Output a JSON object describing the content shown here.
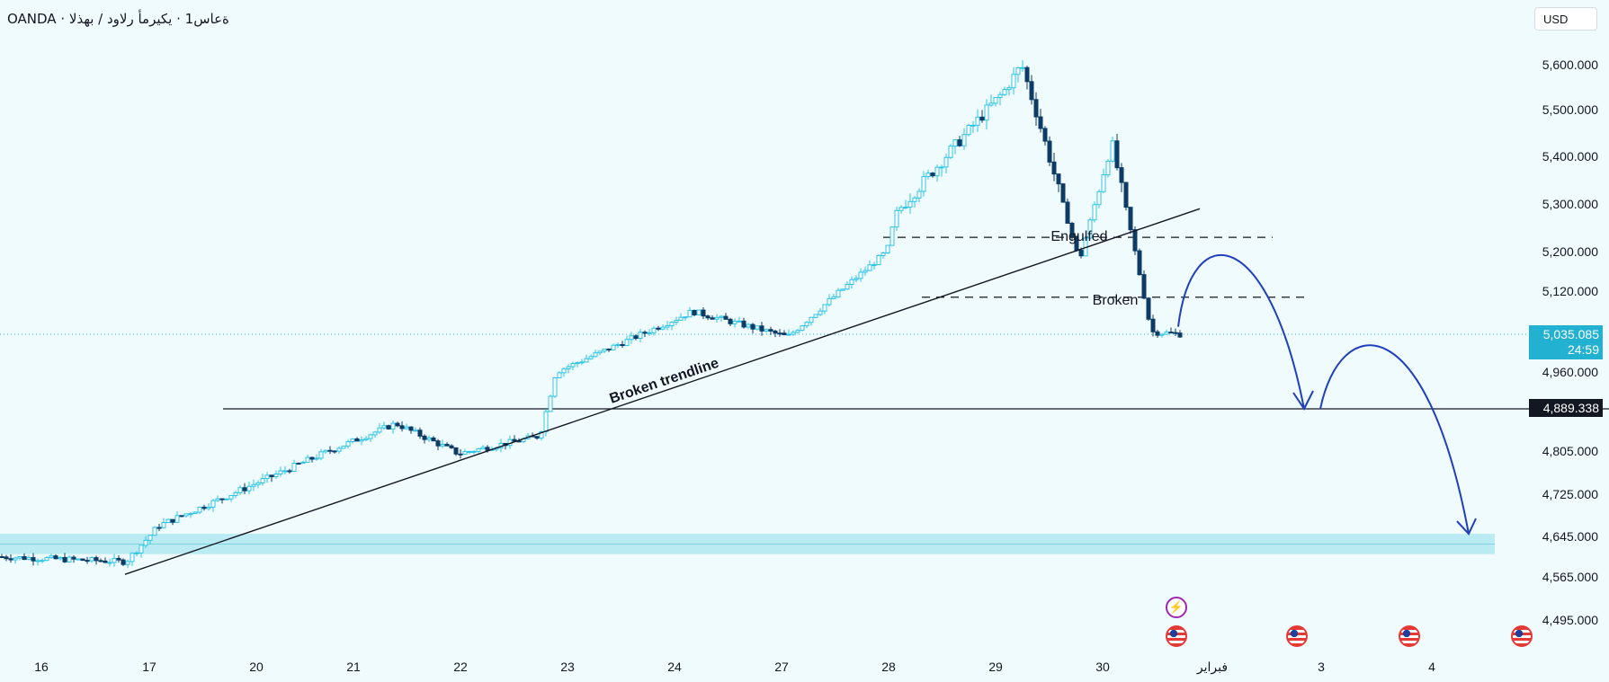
{
  "header": {
    "symbol_title": "OANDA · ةعاس1 · يكيرمأ رلاود / بهذلا",
    "currency": "USD"
  },
  "price_tags": {
    "current_price": "5,035.085",
    "countdown": "24:59",
    "level": "4,889.338"
  },
  "annotations": {
    "engulfed": "Engulfed",
    "broken": "Broken",
    "trendline": "Broken trendline"
  },
  "events": [
    "flash-icon",
    "us-flag-icon",
    "us-flag-icon",
    "us-flag-icon",
    "us-flag-icon"
  ],
  "colors": {
    "background": "#f0fbfd",
    "bull_candle": "#2bc4e6",
    "bear_candle": "#0d3b66",
    "projection_arrow": "#1f3fbf",
    "zone": "#a9e6ee",
    "current_price": "#22b1d0"
  },
  "chart_data": {
    "type": "candlestick",
    "symbol": "XAU/USD",
    "timeframe": "1h",
    "x_tick_labels": [
      "16",
      "17",
      "20",
      "21",
      "22",
      "23",
      "24",
      "27",
      "28",
      "29",
      "30",
      "فبراير",
      "3",
      "4"
    ],
    "y_tick_labels": [
      "5,600.000",
      "5,500.000",
      "5,400.000",
      "5,300.000",
      "5,200.000",
      "5,120.000",
      "4,960.000",
      "4,805.000",
      "4,725.000",
      "4,645.000",
      "4,565.000",
      "4,495.000"
    ],
    "ylim": [
      4455,
      5660
    ],
    "key_points": [
      {
        "date": "16",
        "price": 4605
      },
      {
        "date": "17",
        "price": 4595
      },
      {
        "date": "17",
        "price": 4665
      },
      {
        "date": "21",
        "price": 4860
      },
      {
        "date": "22",
        "price": 4800
      },
      {
        "date": "23",
        "price": 4835
      },
      {
        "date": "23",
        "price": 4960
      },
      {
        "date": "24",
        "price": 5080
      },
      {
        "date": "27",
        "price": 5030
      },
      {
        "date": "28",
        "price": 5200
      },
      {
        "date": "28",
        "price": 5280
      },
      {
        "date": "29",
        "price": 5540
      },
      {
        "date": "29",
        "price": 5600
      },
      {
        "date": "30",
        "price": 5180
      },
      {
        "date": "30",
        "price": 5430
      },
      {
        "date": "30",
        "price": 5040
      },
      {
        "date": "30",
        "price": 5035.085
      }
    ],
    "levels": [
      {
        "price": 4889.338,
        "style": "solid"
      },
      {
        "price": 5230,
        "style": "dashed",
        "label": "Engulfed"
      },
      {
        "price": 5108,
        "style": "dashed",
        "label": "Broken"
      }
    ],
    "zone": [
      4610,
      4650
    ],
    "trendline": {
      "label": "Broken trendline",
      "from": {
        "date": "17",
        "price": 4570
      },
      "to": {
        "date": "30",
        "price": 5290
      }
    },
    "projection": [
      {
        "date": "30",
        "price": 5050
      },
      {
        "date": "30",
        "price": 5180
      },
      {
        "date": "3",
        "price": 4889.338
      },
      {
        "date": "3",
        "price": 4970
      },
      {
        "date": "4",
        "price": 4650
      }
    ]
  }
}
